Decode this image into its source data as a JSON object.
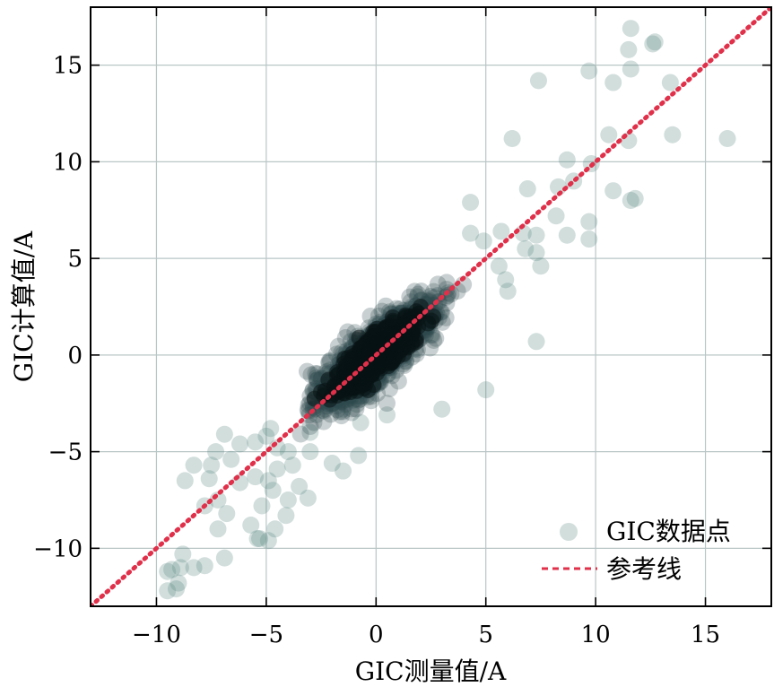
{
  "chart_data": {
    "type": "scatter",
    "xlabel": "GIC测量值/A",
    "ylabel": "GIC计算值/A",
    "xlim": [
      -13,
      18
    ],
    "ylim": [
      -13,
      18
    ],
    "xticks": [
      -10,
      -5,
      0,
      5,
      10,
      15
    ],
    "yticks": [
      -10,
      -5,
      0,
      5,
      10,
      15
    ],
    "xtick_labels": [
      "−10",
      "−5",
      "0",
      "5",
      "10",
      "15"
    ],
    "ytick_labels": [
      "−10",
      "−5",
      "0",
      "5",
      "10",
      "15"
    ],
    "grid": true,
    "legend_position": "bottom-right",
    "series": [
      {
        "name": "GIC数据点",
        "kind": "scatter",
        "color": "#5a8a80",
        "points": [
          [
            11.6,
            16.9
          ],
          [
            12.7,
            16.2
          ],
          [
            12.6,
            16.1
          ],
          [
            11.5,
            15.8
          ],
          [
            9.7,
            14.7
          ],
          [
            11.6,
            14.8
          ],
          [
            7.4,
            14.2
          ],
          [
            10.8,
            14.1
          ],
          [
            13.4,
            14.1
          ],
          [
            10.6,
            11.4
          ],
          [
            6.2,
            11.2
          ],
          [
            11.5,
            11.1
          ],
          [
            13.5,
            11.4
          ],
          [
            16.0,
            11.2
          ],
          [
            8.7,
            10.1
          ],
          [
            9.8,
            9.9
          ],
          [
            9.0,
            9.0
          ],
          [
            8.3,
            8.7
          ],
          [
            6.9,
            8.6
          ],
          [
            10.8,
            8.5
          ],
          [
            11.8,
            8.1
          ],
          [
            11.6,
            8.0
          ],
          [
            4.3,
            7.9
          ],
          [
            8.2,
            7.2
          ],
          [
            9.7,
            6.9
          ],
          [
            7.3,
            6.2
          ],
          [
            8.7,
            6.2
          ],
          [
            9.7,
            6.0
          ],
          [
            4.3,
            6.3
          ],
          [
            5.7,
            6.4
          ],
          [
            6.7,
            6.3
          ],
          [
            4.9,
            5.9
          ],
          [
            6.8,
            5.5
          ],
          [
            7.3,
            5.3
          ],
          [
            5.6,
            4.6
          ],
          [
            7.5,
            4.6
          ],
          [
            5.9,
            3.9
          ],
          [
            6.0,
            3.3
          ],
          [
            7.3,
            0.7
          ],
          [
            5.0,
            -1.8
          ],
          [
            3.0,
            -2.8
          ],
          [
            -2.0,
            -2.5
          ],
          [
            -1.5,
            -2.8
          ],
          [
            -0.7,
            -3.5
          ],
          [
            0.5,
            -3.1
          ],
          [
            -3.0,
            -4.0
          ],
          [
            -4.8,
            -3.8
          ],
          [
            -5.0,
            -4.2
          ],
          [
            -5.5,
            -4.5
          ],
          [
            -4.5,
            -4.8
          ],
          [
            -6.2,
            -4.6
          ],
          [
            -6.9,
            -4.1
          ],
          [
            -7.3,
            -5.0
          ],
          [
            -4.0,
            -5.0
          ],
          [
            -3.0,
            -5.0
          ],
          [
            -2.0,
            -5.6
          ],
          [
            -0.8,
            -5.2
          ],
          [
            -1.5,
            -6.0
          ],
          [
            -3.8,
            -5.7
          ],
          [
            -4.5,
            -5.9
          ],
          [
            -5.5,
            -6.3
          ],
          [
            -4.9,
            -6.5
          ],
          [
            -6.6,
            -5.4
          ],
          [
            -7.5,
            -5.7
          ],
          [
            -8.3,
            -5.7
          ],
          [
            -8.7,
            -6.5
          ],
          [
            -7.6,
            -6.4
          ],
          [
            -6.2,
            -6.6
          ],
          [
            -4.7,
            -7.0
          ],
          [
            -3.5,
            -6.8
          ],
          [
            -3.1,
            -7.4
          ],
          [
            -4.0,
            -7.5
          ],
          [
            -5.2,
            -7.8
          ],
          [
            -7.2,
            -7.5
          ],
          [
            -6.8,
            -8.2
          ],
          [
            -7.8,
            -7.8
          ],
          [
            -5.7,
            -8.8
          ],
          [
            -4.1,
            -8.3
          ],
          [
            -4.6,
            -9.0
          ],
          [
            -5.3,
            -9.5
          ],
          [
            -4.9,
            -9.6
          ],
          [
            -7.2,
            -9.0
          ],
          [
            -8.8,
            -10.3
          ],
          [
            -7.8,
            -10.9
          ],
          [
            -8.3,
            -11.0
          ],
          [
            -9.3,
            -11.1
          ],
          [
            -9.5,
            -11.2
          ],
          [
            -8.9,
            -11.0
          ],
          [
            -9.0,
            -11.8
          ],
          [
            -9.5,
            -12.2
          ],
          [
            -9.1,
            -12.1
          ],
          [
            -6.9,
            -10.5
          ],
          [
            -5.4,
            -9.5
          ]
        ]
      },
      {
        "name": "参考线",
        "kind": "line",
        "style": "dotted",
        "color": "#e0304a",
        "points": [
          [
            -13,
            -13
          ],
          [
            18,
            18
          ]
        ]
      }
    ]
  }
}
